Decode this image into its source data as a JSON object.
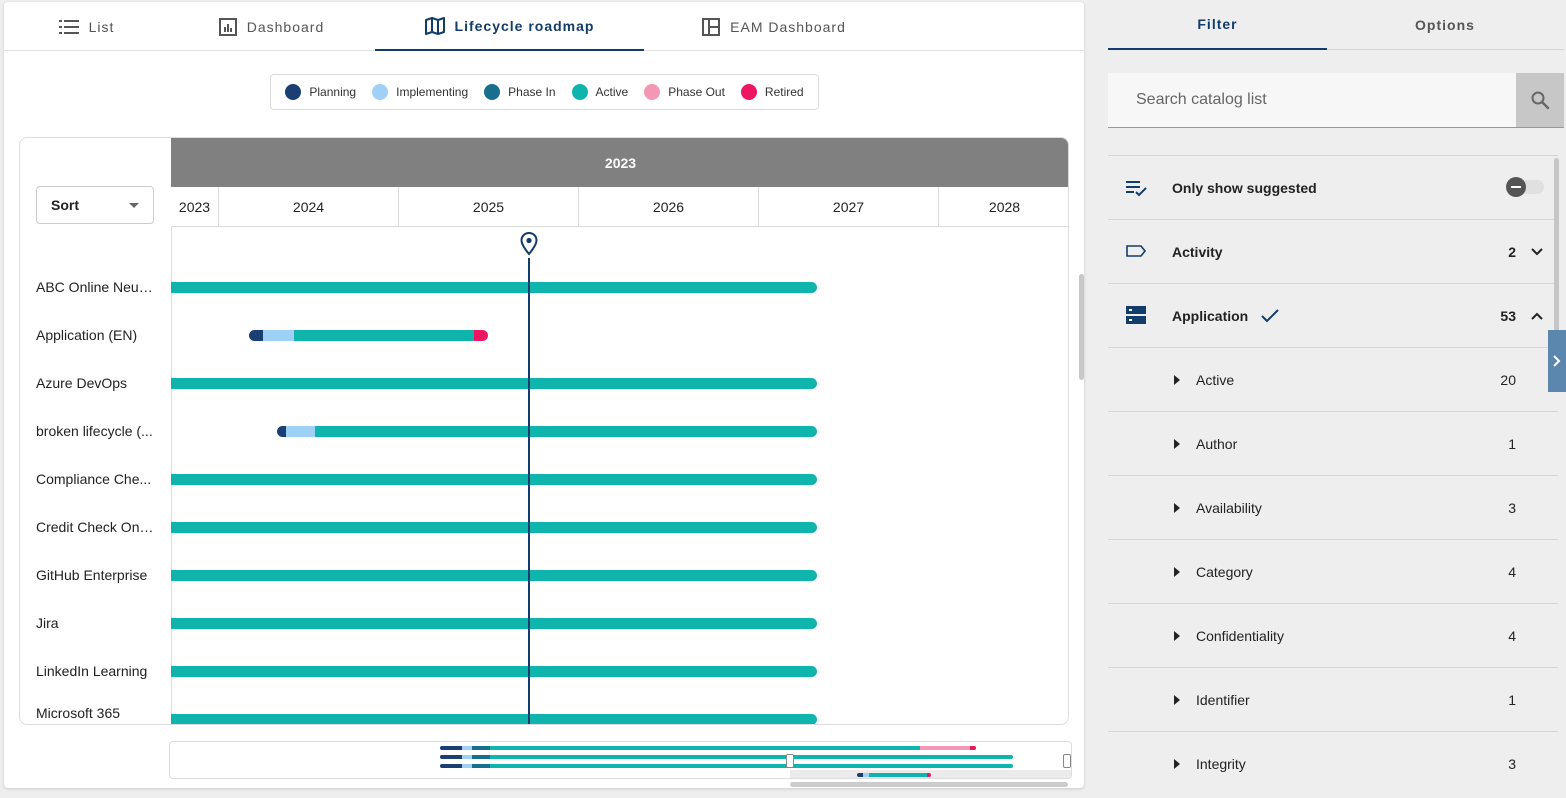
{
  "tabs": [
    {
      "label": "List",
      "icon": "list-icon"
    },
    {
      "label": "Dashboard",
      "icon": "dashboard-icon"
    },
    {
      "label": "Lifecycle roadmap",
      "icon": "map-icon",
      "active": true
    },
    {
      "label": "EAM Dashboard",
      "icon": "layout-icon"
    }
  ],
  "legend": [
    {
      "label": "Planning",
      "color": "#1b3f73"
    },
    {
      "label": "Implementing",
      "color": "#9fd0f5"
    },
    {
      "label": "Phase In",
      "color": "#176e8f"
    },
    {
      "label": "Active",
      "color": "#0fb5ad"
    },
    {
      "label": "Phase Out",
      "color": "#f397b5"
    },
    {
      "label": "Retired",
      "color": "#ee1563"
    }
  ],
  "roadmap": {
    "header_year": "2023",
    "sort_label": "Sort",
    "years": [
      "2023",
      "2024",
      "2025",
      "2026",
      "2027",
      "2028"
    ],
    "today": "2025-01",
    "rows": [
      {
        "name": "ABC Online Neuk...",
        "phases": [
          {
            "phase": "Active",
            "from": 2022.0,
            "to": 2027.33
          }
        ]
      },
      {
        "name": "Application (EN)",
        "phases": [
          {
            "phase": "Planning",
            "from": 2024.17,
            "to": 2024.25
          },
          {
            "phase": "Implementing",
            "from": 2024.25,
            "to": 2024.42
          },
          {
            "phase": "Active",
            "from": 2024.42,
            "to": 2025.42
          },
          {
            "phase": "Retired",
            "from": 2025.42,
            "to": 2025.5
          }
        ]
      },
      {
        "name": "Azure DevOps",
        "phases": [
          {
            "phase": "Active",
            "from": 2022.0,
            "to": 2027.33
          }
        ]
      },
      {
        "name": "broken lifecycle (...",
        "phases": [
          {
            "phase": "Planning",
            "from": 2024.33,
            "to": 2024.38
          },
          {
            "phase": "Implementing",
            "from": 2024.38,
            "to": 2024.54
          },
          {
            "phase": "Active",
            "from": 2024.54,
            "to": 2027.33
          }
        ]
      },
      {
        "name": "Compliance Che...",
        "phases": [
          {
            "phase": "Active",
            "from": 2022.0,
            "to": 2027.33
          }
        ]
      },
      {
        "name": "Credit Check Onli...",
        "phases": [
          {
            "phase": "Active",
            "from": 2022.0,
            "to": 2027.33
          }
        ]
      },
      {
        "name": "GitHub Enterprise",
        "phases": [
          {
            "phase": "Active",
            "from": 2022.0,
            "to": 2027.33
          }
        ]
      },
      {
        "name": "Jira",
        "phases": [
          {
            "phase": "Active",
            "from": 2022.0,
            "to": 2027.33
          }
        ]
      },
      {
        "name": "LinkedIn Learning",
        "phases": [
          {
            "phase": "Active",
            "from": 2022.0,
            "to": 2027.33
          }
        ]
      },
      {
        "name": "Microsoft 365",
        "phases": [
          {
            "phase": "Active",
            "from": 2022.0,
            "to": 2027.33
          }
        ]
      }
    ]
  },
  "sidebar": {
    "tabs": [
      "Filter",
      "Options"
    ],
    "search_placeholder": "Search catalog list",
    "only_suggested_label": "Only show suggested",
    "filters": [
      {
        "label": "Activity",
        "count": "2",
        "expanded": false,
        "icon": "tag-icon"
      },
      {
        "label": "Application",
        "count": "53",
        "expanded": true,
        "icon": "server-icon",
        "checked": true
      }
    ],
    "sub_filters": [
      {
        "label": "Active",
        "count": "20"
      },
      {
        "label": "Author",
        "count": "1"
      },
      {
        "label": "Availability",
        "count": "3"
      },
      {
        "label": "Category",
        "count": "4"
      },
      {
        "label": "Confidentiality",
        "count": "4"
      },
      {
        "label": "Identifier",
        "count": "1"
      },
      {
        "label": "Integrity",
        "count": "3"
      }
    ]
  },
  "colors": {
    "accent": "#123c69"
  }
}
